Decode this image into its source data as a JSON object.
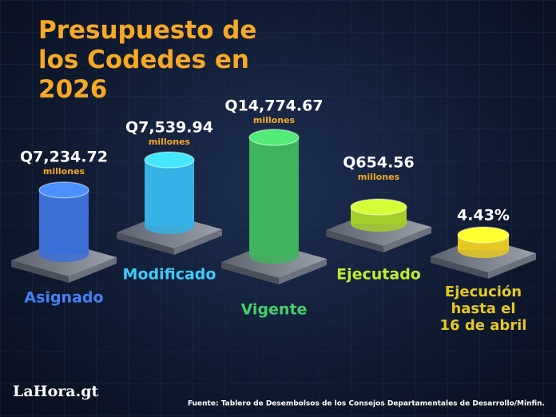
{
  "chart_data": {
    "type": "bar",
    "title": "Presupuesto de los Codedes en 2026",
    "categories": [
      "Asignado",
      "Modificado",
      "Vigente",
      "Ejecutado"
    ],
    "values": [
      7234.72,
      7539.94,
      14774.67,
      654.56
    ],
    "value_labels": [
      "Q7,234.72",
      "Q7,539.94",
      "Q14,774.67",
      "Q654.56"
    ],
    "unit": "millones",
    "colors": [
      "#3b6fd6",
      "#35b2e6",
      "#3fb45c",
      "#a3cf2c"
    ]
  },
  "execution": {
    "label_lines": [
      "Ejecución",
      "hasta el",
      "16 de abril"
    ],
    "value": 4.43,
    "value_label": "4.43%",
    "color": "#e6c823"
  },
  "source": "Fuente: Tablero de Desembolsos de los Consejos Departamentales de Desarrollo/Minfin.",
  "logo": "LaHora.gt"
}
